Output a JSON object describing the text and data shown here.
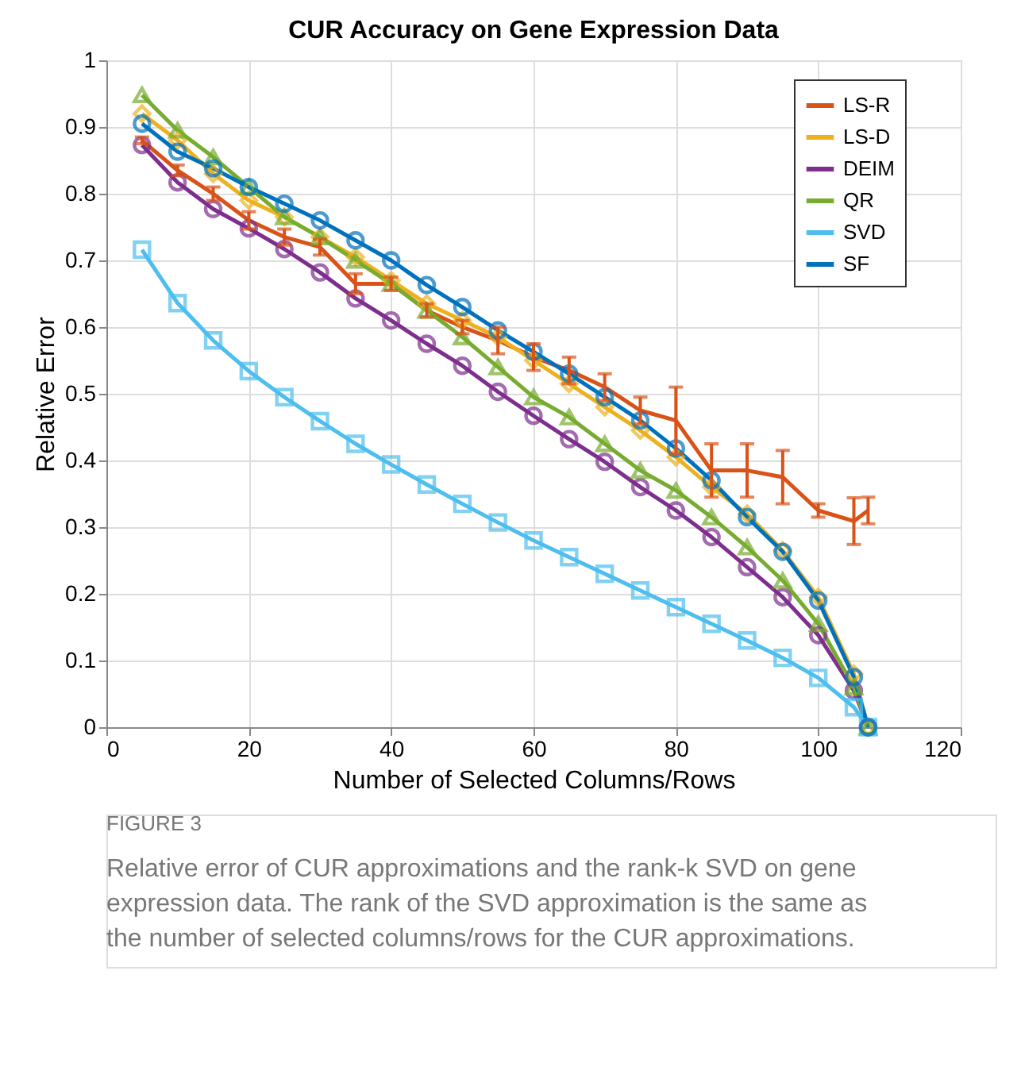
{
  "chart_data": {
    "type": "line",
    "title": "CUR Accuracy on Gene Expression Data",
    "xlabel": "Number of Selected Columns/Rows",
    "ylabel": "Relative Error",
    "x": [
      5,
      10,
      15,
      20,
      25,
      30,
      35,
      40,
      45,
      50,
      55,
      60,
      65,
      70,
      75,
      80,
      85,
      90,
      95,
      100,
      105,
      107
    ],
    "series": [
      {
        "name": "LS-R",
        "color": "#d95319",
        "marker": "none",
        "values": [
          0.88,
          0.835,
          0.8,
          0.76,
          0.735,
          0.72,
          0.665,
          0.665,
          0.625,
          0.6,
          0.58,
          0.555,
          0.535,
          0.51,
          0.475,
          0.46,
          0.385,
          0.385,
          0.375,
          0.325,
          0.309,
          0.325
        ],
        "errors": [
          0.005,
          0.008,
          0.01,
          0.013,
          0.012,
          0.012,
          0.015,
          0.01,
          0.01,
          0.01,
          0.02,
          0.02,
          0.02,
          0.02,
          0.02,
          0.05,
          0.04,
          0.04,
          0.04,
          0.01,
          0.035,
          0.02
        ]
      },
      {
        "name": "LS-D",
        "color": "#edb120",
        "marker": "diamond",
        "values": [
          0.92,
          0.88,
          0.83,
          0.79,
          0.765,
          0.735,
          0.705,
          0.67,
          0.635,
          0.61,
          0.585,
          0.55,
          0.515,
          0.48,
          0.445,
          0.405,
          0.36,
          0.32,
          0.265,
          0.195,
          0.08,
          0.0
        ]
      },
      {
        "name": "DEIM",
        "color": "#7e2f8e",
        "marker": "circle",
        "values": [
          0.873,
          0.817,
          0.777,
          0.748,
          0.717,
          0.682,
          0.643,
          0.61,
          0.575,
          0.542,
          0.503,
          0.467,
          0.432,
          0.398,
          0.36,
          0.325,
          0.285,
          0.24,
          0.195,
          0.138,
          0.055,
          0.0
        ]
      },
      {
        "name": "QR",
        "color": "#77ac30",
        "marker": "triangle",
        "values": [
          0.948,
          0.895,
          0.855,
          0.81,
          0.765,
          0.735,
          0.7,
          0.665,
          0.625,
          0.585,
          0.54,
          0.495,
          0.465,
          0.425,
          0.385,
          0.355,
          0.315,
          0.27,
          0.22,
          0.155,
          0.06,
          0.0
        ]
      },
      {
        "name": "SVD",
        "color": "#4dbeee",
        "marker": "square",
        "values": [
          0.716,
          0.636,
          0.58,
          0.534,
          0.495,
          0.459,
          0.425,
          0.394,
          0.364,
          0.335,
          0.307,
          0.28,
          0.255,
          0.23,
          0.205,
          0.18,
          0.155,
          0.13,
          0.104,
          0.074,
          0.03,
          0.0
        ]
      },
      {
        "name": "SF",
        "color": "#0072bd",
        "marker": "circle",
        "values": [
          0.905,
          0.863,
          0.838,
          0.81,
          0.785,
          0.76,
          0.73,
          0.7,
          0.663,
          0.63,
          0.595,
          0.563,
          0.53,
          0.495,
          0.46,
          0.418,
          0.37,
          0.315,
          0.263,
          0.19,
          0.075,
          0.0
        ]
      }
    ],
    "xlim": [
      0,
      120
    ],
    "xticks": [
      0,
      20,
      40,
      60,
      80,
      100,
      120
    ],
    "ylim": [
      0,
      1
    ],
    "yticks": [
      0,
      0.1,
      0.2,
      0.3,
      0.4,
      0.5,
      0.6,
      0.7,
      0.8,
      0.9,
      1
    ],
    "grid": true,
    "legend": "top right",
    "line_style": "solid",
    "annotations": [
      "FIGURE 3",
      "Relative error of CUR approximations and the rank-k SVD on gene expression data. The rank of the SVD approximation is the same as the number of selected columns/rows for the CUR approximations."
    ]
  }
}
